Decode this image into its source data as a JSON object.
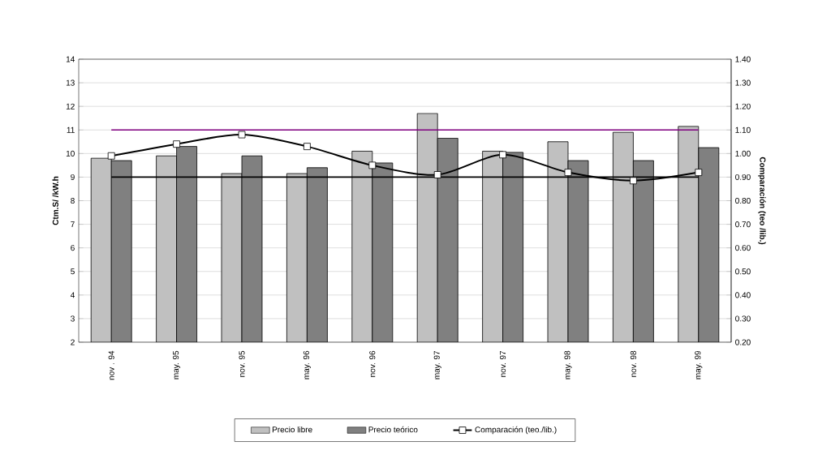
{
  "chart_data": {
    "type": "bar",
    "ylabel": "Ctm.S/ /kW.h",
    "y2label": "Comparación (teo /lib.)",
    "categories": [
      "nov . 94",
      "may. 95",
      "nov. 95",
      "may. 96",
      "nov. 96",
      "may. 97",
      "nov. 97",
      "may. 98",
      "nov. 98",
      "may. 99"
    ],
    "series": [
      {
        "name": "Precio libre",
        "color": "#c0c0c0",
        "values": [
          9.8,
          9.9,
          9.15,
          9.15,
          10.1,
          11.7,
          10.1,
          10.5,
          10.9,
          11.15
        ]
      },
      {
        "name": "Precio teórico",
        "color": "#808080",
        "values": [
          9.7,
          10.3,
          9.9,
          9.4,
          9.6,
          10.65,
          10.05,
          9.7,
          9.7,
          10.25
        ]
      },
      {
        "name": "Comparación (teo./lib.)",
        "type": "line",
        "axis": "y2",
        "color": "#000000",
        "values": [
          0.99,
          1.04,
          1.08,
          1.03,
          0.95,
          0.91,
          0.995,
          0.92,
          0.885,
          0.92
        ]
      }
    ],
    "ylim": [
      2,
      14
    ],
    "yticks": [
      2,
      3,
      4,
      5,
      6,
      7,
      8,
      9,
      10,
      11,
      12,
      13,
      14
    ],
    "y2lim": [
      0.2,
      1.4
    ],
    "y2ticks": [
      {
        "value": 0.2,
        "label": "0.20"
      },
      {
        "value": 0.3,
        "label": "0.30"
      },
      {
        "value": 0.4,
        "label": "0.40"
      },
      {
        "value": 0.5,
        "label": "0.50"
      },
      {
        "value": 0.6,
        "label": "0.60"
      },
      {
        "value": 0.7,
        "label": "0.70"
      },
      {
        "value": 0.8,
        "label": "0.80"
      },
      {
        "value": 0.9,
        "label": "0.90"
      },
      {
        "value": 1.0,
        "label": "1.00"
      },
      {
        "value": 1.1,
        "label": "1.10"
      },
      {
        "value": 1.2,
        "label": "1.20"
      },
      {
        "value": 1.3,
        "label": "1.30"
      },
      {
        "value": 1.4,
        "label": "1.40"
      }
    ],
    "ref_lines": [
      {
        "axis": "y2",
        "value": 1.1,
        "color": "#800080"
      },
      {
        "axis": "y2",
        "value": 0.9,
        "color": "#000000"
      }
    ],
    "grid": "y",
    "legend": "bottom",
    "marker": "square",
    "line_style": "solid"
  }
}
